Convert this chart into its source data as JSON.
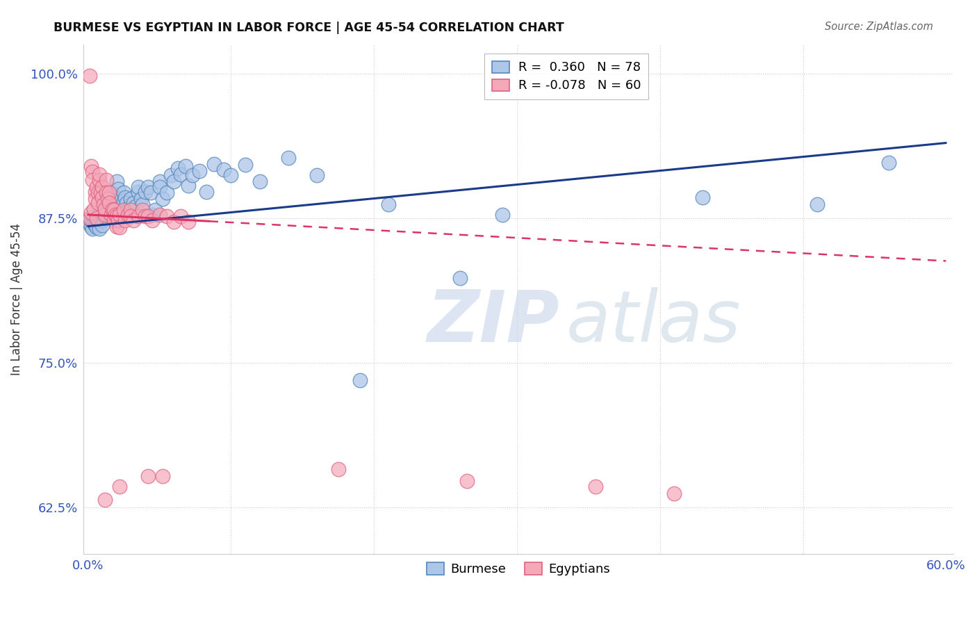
{
  "title": "BURMESE VS EGYPTIAN IN LABOR FORCE | AGE 45-54 CORRELATION CHART",
  "source": "Source: ZipAtlas.com",
  "ylabel": "In Labor Force | Age 45-54",
  "xlim": [
    -0.003,
    0.605
  ],
  "ylim": [
    0.585,
    1.025
  ],
  "xticks": [
    0.0,
    0.1,
    0.2,
    0.3,
    0.4,
    0.5,
    0.6
  ],
  "xticklabels": [
    "0.0%",
    "",
    "",
    "",
    "",
    "",
    "60.0%"
  ],
  "yticks": [
    0.625,
    0.75,
    0.875,
    1.0
  ],
  "yticklabels": [
    "62.5%",
    "75.0%",
    "87.5%",
    "100.0%"
  ],
  "R_blue": 0.36,
  "N_blue": 78,
  "R_pink": -0.078,
  "N_pink": 60,
  "blue_color": "#aec6e8",
  "pink_color": "#f4a8b8",
  "blue_edge_color": "#5588bb",
  "pink_edge_color": "#e06080",
  "blue_line_color": "#1a3a8a",
  "pink_line_color": "#dd3366",
  "watermark_zip": "ZIP",
  "watermark_atlas": "atlas",
  "blue_scatter": [
    [
      0.001,
      0.87
    ],
    [
      0.001,
      0.875
    ],
    [
      0.002,
      0.868
    ],
    [
      0.002,
      0.873
    ],
    [
      0.003,
      0.872
    ],
    [
      0.003,
      0.866
    ],
    [
      0.004,
      0.871
    ],
    [
      0.004,
      0.876
    ],
    [
      0.005,
      0.869
    ],
    [
      0.005,
      0.874
    ],
    [
      0.006,
      0.871
    ],
    [
      0.006,
      0.867
    ],
    [
      0.007,
      0.878
    ],
    [
      0.007,
      0.873
    ],
    [
      0.008,
      0.872
    ],
    [
      0.008,
      0.866
    ],
    [
      0.009,
      0.874
    ],
    [
      0.01,
      0.873
    ],
    [
      0.01,
      0.869
    ],
    [
      0.012,
      0.876
    ],
    [
      0.012,
      0.881
    ],
    [
      0.013,
      0.878
    ],
    [
      0.014,
      0.88
    ],
    [
      0.015,
      0.893
    ],
    [
      0.016,
      0.897
    ],
    [
      0.017,
      0.888
    ],
    [
      0.018,
      0.893
    ],
    [
      0.019,
      0.89
    ],
    [
      0.02,
      0.907
    ],
    [
      0.021,
      0.9
    ],
    [
      0.022,
      0.892
    ],
    [
      0.023,
      0.885
    ],
    [
      0.025,
      0.897
    ],
    [
      0.025,
      0.89
    ],
    [
      0.026,
      0.893
    ],
    [
      0.027,
      0.888
    ],
    [
      0.028,
      0.882
    ],
    [
      0.028,
      0.877
    ],
    [
      0.03,
      0.887
    ],
    [
      0.03,
      0.892
    ],
    [
      0.032,
      0.888
    ],
    [
      0.033,
      0.885
    ],
    [
      0.035,
      0.898
    ],
    [
      0.035,
      0.902
    ],
    [
      0.037,
      0.892
    ],
    [
      0.038,
      0.887
    ],
    [
      0.04,
      0.898
    ],
    [
      0.042,
      0.902
    ],
    [
      0.044,
      0.897
    ],
    [
      0.045,
      0.878
    ],
    [
      0.047,
      0.882
    ],
    [
      0.05,
      0.907
    ],
    [
      0.05,
      0.902
    ],
    [
      0.052,
      0.892
    ],
    [
      0.055,
      0.897
    ],
    [
      0.058,
      0.912
    ],
    [
      0.06,
      0.907
    ],
    [
      0.063,
      0.918
    ],
    [
      0.065,
      0.913
    ],
    [
      0.068,
      0.92
    ],
    [
      0.07,
      0.903
    ],
    [
      0.073,
      0.912
    ],
    [
      0.078,
      0.916
    ],
    [
      0.083,
      0.898
    ],
    [
      0.088,
      0.922
    ],
    [
      0.095,
      0.917
    ],
    [
      0.1,
      0.912
    ],
    [
      0.11,
      0.921
    ],
    [
      0.12,
      0.907
    ],
    [
      0.14,
      0.927
    ],
    [
      0.16,
      0.912
    ],
    [
      0.19,
      0.735
    ],
    [
      0.21,
      0.887
    ],
    [
      0.26,
      0.823
    ],
    [
      0.29,
      0.878
    ],
    [
      0.43,
      0.893
    ],
    [
      0.51,
      0.887
    ],
    [
      0.56,
      0.923
    ]
  ],
  "pink_scatter": [
    [
      0.001,
      0.998
    ],
    [
      0.001,
      0.875
    ],
    [
      0.002,
      0.92
    ],
    [
      0.002,
      0.88
    ],
    [
      0.003,
      0.915
    ],
    [
      0.003,
      0.908
    ],
    [
      0.004,
      0.883
    ],
    [
      0.005,
      0.898
    ],
    [
      0.005,
      0.892
    ],
    [
      0.006,
      0.902
    ],
    [
      0.006,
      0.875
    ],
    [
      0.007,
      0.897
    ],
    [
      0.007,
      0.888
    ],
    [
      0.008,
      0.908
    ],
    [
      0.008,
      0.913
    ],
    [
      0.009,
      0.897
    ],
    [
      0.01,
      0.902
    ],
    [
      0.01,
      0.893
    ],
    [
      0.011,
      0.887
    ],
    [
      0.012,
      0.878
    ],
    [
      0.012,
      0.883
    ],
    [
      0.013,
      0.908
    ],
    [
      0.013,
      0.897
    ],
    [
      0.014,
      0.892
    ],
    [
      0.015,
      0.897
    ],
    [
      0.015,
      0.888
    ],
    [
      0.016,
      0.878
    ],
    [
      0.017,
      0.883
    ],
    [
      0.018,
      0.882
    ],
    [
      0.018,
      0.873
    ],
    [
      0.019,
      0.878
    ],
    [
      0.02,
      0.877
    ],
    [
      0.02,
      0.868
    ],
    [
      0.021,
      0.873
    ],
    [
      0.022,
      0.878
    ],
    [
      0.022,
      0.867
    ],
    [
      0.025,
      0.882
    ],
    [
      0.026,
      0.873
    ],
    [
      0.028,
      0.878
    ],
    [
      0.03,
      0.882
    ],
    [
      0.03,
      0.877
    ],
    [
      0.032,
      0.873
    ],
    [
      0.035,
      0.877
    ],
    [
      0.038,
      0.882
    ],
    [
      0.04,
      0.877
    ],
    [
      0.042,
      0.877
    ],
    [
      0.045,
      0.873
    ],
    [
      0.05,
      0.878
    ],
    [
      0.055,
      0.877
    ],
    [
      0.06,
      0.872
    ],
    [
      0.065,
      0.877
    ],
    [
      0.07,
      0.872
    ],
    [
      0.012,
      0.632
    ],
    [
      0.022,
      0.643
    ],
    [
      0.042,
      0.652
    ],
    [
      0.052,
      0.652
    ],
    [
      0.175,
      0.658
    ],
    [
      0.265,
      0.648
    ],
    [
      0.355,
      0.643
    ],
    [
      0.41,
      0.637
    ]
  ]
}
